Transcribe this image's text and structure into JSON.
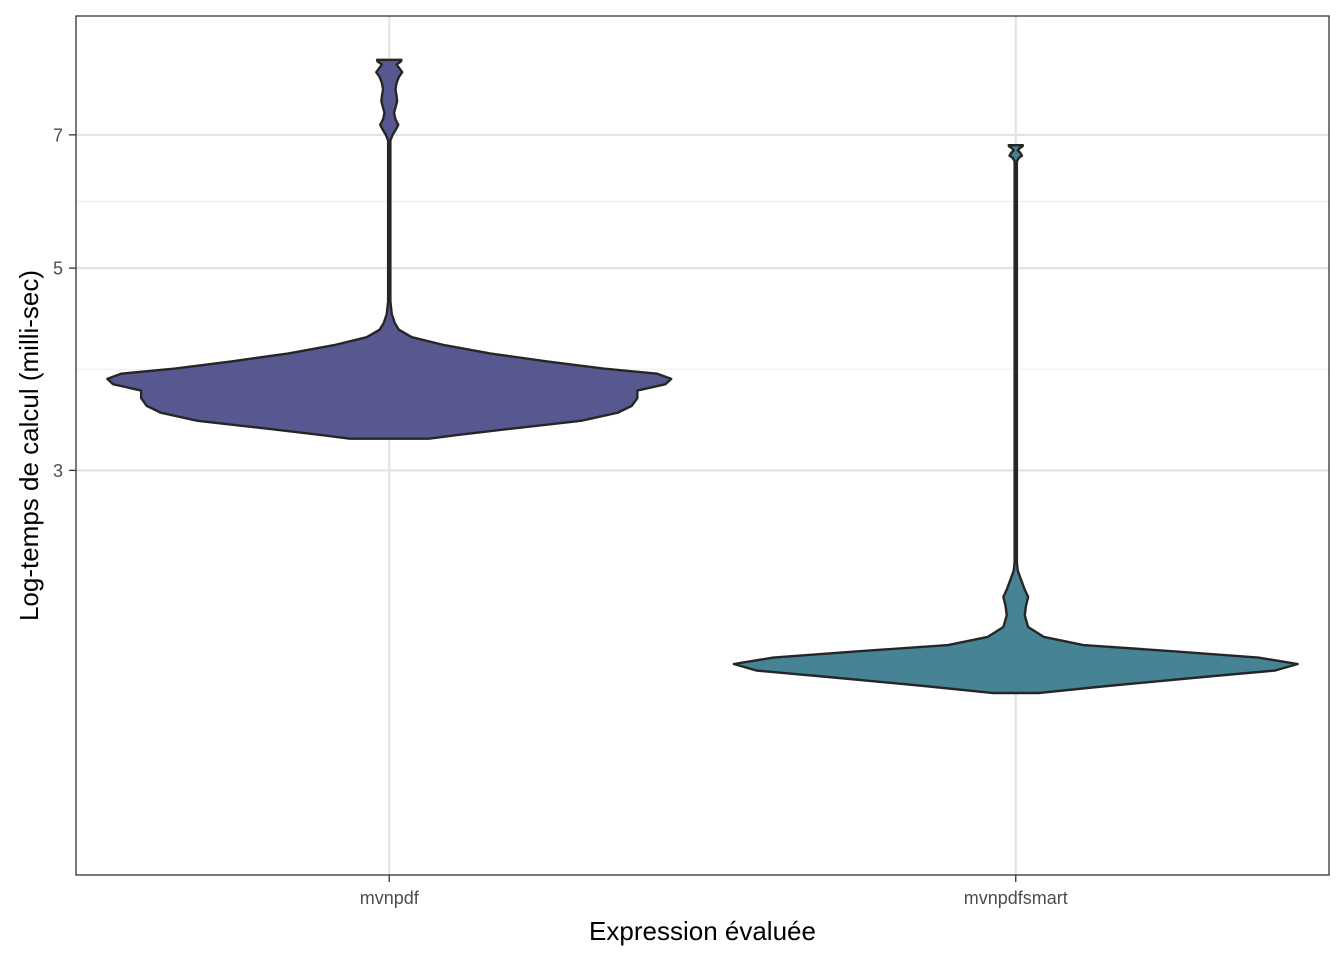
{
  "chart_data": {
    "type": "violin",
    "title": "",
    "xlabel": "Expression évaluée",
    "ylabel": "Log-temps de calcul (milli-sec)",
    "categories": [
      "mvnpdf",
      "mvnpdfsmart"
    ],
    "y_ticks": [
      3,
      5,
      7
    ],
    "y_tick_labels": [
      "3",
      "5",
      "7"
    ],
    "ylim": [
      1.08,
      9.45
    ],
    "grid": true,
    "legend": "none",
    "colors": {
      "mvnpdf": "#4a4a88",
      "mvnpdfsmart": "#35788c",
      "outline": "#262626",
      "grid_major": "#e3e3e3",
      "grid_minor": "#efefef",
      "panel_border": "#333333"
    },
    "series": [
      {
        "category": "mvnpdf",
        "min": 3.25,
        "max": 8.46,
        "density_profile": [
          [
            3.25,
            0.14
          ],
          [
            3.28,
            0.24
          ],
          [
            3.33,
            0.42
          ],
          [
            3.4,
            0.68
          ],
          [
            3.47,
            0.81
          ],
          [
            3.53,
            0.86
          ],
          [
            3.6,
            0.88
          ],
          [
            3.67,
            0.88
          ],
          [
            3.73,
            0.98
          ],
          [
            3.78,
            1.0
          ],
          [
            3.83,
            0.95
          ],
          [
            3.88,
            0.76
          ],
          [
            3.95,
            0.56
          ],
          [
            4.03,
            0.36
          ],
          [
            4.12,
            0.19
          ],
          [
            4.2,
            0.08
          ],
          [
            4.28,
            0.034
          ],
          [
            4.35,
            0.02
          ],
          [
            4.45,
            0.009
          ],
          [
            4.6,
            0.004
          ],
          [
            5.0,
            0.004
          ],
          [
            6.0,
            0.004
          ],
          [
            6.9,
            0.004
          ],
          [
            7.0,
            0.012
          ],
          [
            7.1,
            0.024
          ],
          [
            7.18,
            0.032
          ],
          [
            7.28,
            0.022
          ],
          [
            7.4,
            0.017
          ],
          [
            7.5,
            0.022
          ],
          [
            7.62,
            0.028
          ],
          [
            7.72,
            0.026
          ],
          [
            7.85,
            0.022
          ],
          [
            7.98,
            0.026
          ],
          [
            8.1,
            0.034
          ],
          [
            8.2,
            0.046
          ],
          [
            8.28,
            0.036
          ],
          [
            8.36,
            0.026
          ],
          [
            8.43,
            0.042
          ],
          [
            8.46,
            0.043
          ]
        ]
      },
      {
        "category": "mvnpdfsmart",
        "min": 1.71,
        "max": 6.82,
        "density_profile": [
          [
            1.71,
            0.08
          ],
          [
            1.74,
            0.32
          ],
          [
            1.78,
            0.66
          ],
          [
            1.81,
            0.92
          ],
          [
            1.84,
            1.0
          ],
          [
            1.87,
            0.86
          ],
          [
            1.9,
            0.56
          ],
          [
            1.93,
            0.24
          ],
          [
            1.97,
            0.1
          ],
          [
            2.02,
            0.044
          ],
          [
            2.08,
            0.032
          ],
          [
            2.13,
            0.036
          ],
          [
            2.18,
            0.044
          ],
          [
            2.22,
            0.032
          ],
          [
            2.28,
            0.018
          ],
          [
            2.33,
            0.007
          ],
          [
            2.38,
            0.004
          ],
          [
            3.0,
            0.004
          ],
          [
            4.5,
            0.004
          ],
          [
            6.0,
            0.004
          ],
          [
            6.55,
            0.004
          ],
          [
            6.61,
            0.012
          ],
          [
            6.64,
            0.022
          ],
          [
            6.69,
            0.016
          ],
          [
            6.73,
            0.007
          ],
          [
            6.77,
            0.014
          ],
          [
            6.8,
            0.024
          ],
          [
            6.82,
            0.025
          ]
        ]
      }
    ]
  }
}
